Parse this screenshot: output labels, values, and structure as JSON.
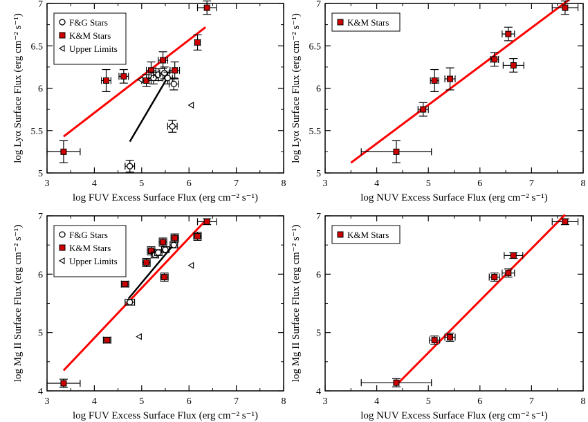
{
  "panels": [
    {
      "id": "tl",
      "xlabel": "log FUV Excess Surface Flux (erg cm⁻² s⁻¹)",
      "ylabel": "log Lyα Surface Flux (erg cm⁻² s⁻¹)",
      "xlim": [
        3,
        8
      ],
      "ylim": [
        5,
        7
      ],
      "xticks": [
        "3",
        "4",
        "5",
        "6",
        "7",
        "8"
      ],
      "yticks": [
        "5",
        "5.5",
        "6",
        "6.5",
        "7"
      ],
      "legend": [
        "F&G Stars",
        "K&M Stars",
        "Upper Limits"
      ]
    },
    {
      "id": "tr",
      "xlabel": "log NUV Excess Surface Flux (erg cm⁻² s⁻¹)",
      "ylabel": "log Lyα Surface Flux (erg cm⁻² s⁻¹)",
      "xlim": [
        3,
        8
      ],
      "ylim": [
        5,
        7
      ],
      "xticks": [
        "3",
        "4",
        "5",
        "6",
        "7",
        "8"
      ],
      "yticks": [
        "5",
        "5.5",
        "6",
        "6.5",
        "7"
      ],
      "legend": [
        "K&M Stars"
      ]
    },
    {
      "id": "bl",
      "xlabel": "log FUV Excess Surface Flux (erg cm⁻² s⁻¹)",
      "ylabel": "log Mg II Surface Flux (erg cm⁻² s⁻¹)",
      "xlim": [
        3,
        8
      ],
      "ylim": [
        4,
        7
      ],
      "xticks": [
        "3",
        "4",
        "5",
        "6",
        "7",
        "8"
      ],
      "yticks": [
        "4",
        "5",
        "6",
        "7"
      ],
      "legend": [
        "F&G Stars",
        "K&M Stars",
        "Upper Limits"
      ]
    },
    {
      "id": "br",
      "xlabel": "log NUV Excess Surface Flux (erg cm⁻² s⁻¹)",
      "ylabel": "log Mg II Surface Flux (erg cm⁻² s⁻¹)",
      "xlim": [
        3,
        8
      ],
      "ylim": [
        4,
        7
      ],
      "xticks": [
        "3",
        "4",
        "5",
        "6",
        "7",
        "8"
      ],
      "yticks": [
        "4",
        "5",
        "6",
        "7"
      ],
      "legend": [
        "K&M Stars"
      ]
    }
  ],
  "chart_data": [
    {
      "type": "scatter",
      "xlabel": "log FUV Excess Surface Flux (erg cm⁻² s⁻¹)",
      "ylabel": "log Lyα Surface Flux (erg cm⁻² s⁻¹)",
      "xlim": [
        3,
        8
      ],
      "ylim": [
        5,
        7
      ],
      "grid": false,
      "legend_position": "top-left",
      "series": [
        {
          "name": "K&M Stars",
          "marker": "red-square",
          "points": [
            {
              "x": 3.35,
              "y": 5.25,
              "xerr": 0.35,
              "yerr": 0.13
            },
            {
              "x": 4.25,
              "y": 6.09,
              "xerr": 0.1,
              "yerr": 0.13
            },
            {
              "x": 4.62,
              "y": 6.14,
              "xerr": 0.1,
              "yerr": 0.08
            },
            {
              "x": 5.1,
              "y": 6.09,
              "xerr": 0.1,
              "yerr": 0.07
            },
            {
              "x": 5.2,
              "y": 6.21,
              "xerr": 0.1,
              "yerr": 0.1
            },
            {
              "x": 5.45,
              "y": 6.33,
              "xerr": 0.1,
              "yerr": 0.1
            },
            {
              "x": 5.7,
              "y": 6.21,
              "xerr": 0.1,
              "yerr": 0.1
            },
            {
              "x": 6.18,
              "y": 6.54,
              "xerr": 0.06,
              "yerr": 0.09
            },
            {
              "x": 6.38,
              "y": 6.95,
              "xerr": 0.2,
              "yerr": 0.08
            }
          ]
        },
        {
          "name": "F&G Stars",
          "marker": "open-circle",
          "points": [
            {
              "x": 4.75,
              "y": 5.08,
              "xerr": 0.1,
              "yerr": 0.07
            },
            {
              "x": 5.25,
              "y": 6.12,
              "xerr": 0.1,
              "yerr": 0.07
            },
            {
              "x": 5.35,
              "y": 6.16,
              "xerr": 0.1,
              "yerr": 0.07
            },
            {
              "x": 5.48,
              "y": 6.18,
              "xerr": 0.1,
              "yerr": 0.07
            },
            {
              "x": 5.55,
              "y": 6.12,
              "xerr": 0.1,
              "yerr": 0.07
            },
            {
              "x": 5.65,
              "y": 5.55,
              "xerr": 0.1,
              "yerr": 0.07
            },
            {
              "x": 5.68,
              "y": 6.05,
              "xerr": 0.1,
              "yerr": 0.07
            }
          ]
        },
        {
          "name": "Upper Limits",
          "marker": "open-triangle-left",
          "points": [
            {
              "x": 4.98,
              "y": 6.1
            },
            {
              "x": 6.05,
              "y": 5.8
            }
          ]
        }
      ],
      "fit_lines": [
        {
          "color": "#ff0000",
          "x": [
            3.35,
            6.35
          ],
          "y": [
            5.43,
            6.72
          ]
        },
        {
          "color": "#000000",
          "x": [
            4.75,
            5.55
          ],
          "y": [
            5.37,
            6.13
          ]
        }
      ]
    },
    {
      "type": "scatter",
      "xlabel": "log NUV Excess Surface Flux (erg cm⁻² s⁻¹)",
      "ylabel": "log Lyα Surface Flux (erg cm⁻² s⁻¹)",
      "xlim": [
        3,
        8
      ],
      "ylim": [
        5,
        7
      ],
      "grid": false,
      "legend_position": "top-left",
      "series": [
        {
          "name": "K&M Stars",
          "marker": "red-square",
          "points": [
            {
              "x": 4.38,
              "y": 5.25,
              "xerr": 0.68,
              "yerr": 0.13
            },
            {
              "x": 4.9,
              "y": 5.75,
              "xerr": 0.1,
              "yerr": 0.08
            },
            {
              "x": 5.12,
              "y": 6.09,
              "xerr": 0.08,
              "yerr": 0.13
            },
            {
              "x": 5.42,
              "y": 6.11,
              "xerr": 0.1,
              "yerr": 0.13
            },
            {
              "x": 6.28,
              "y": 6.34,
              "xerr": 0.08,
              "yerr": 0.08
            },
            {
              "x": 6.55,
              "y": 6.64,
              "xerr": 0.12,
              "yerr": 0.08
            },
            {
              "x": 6.65,
              "y": 6.27,
              "xerr": 0.2,
              "yerr": 0.08
            },
            {
              "x": 7.65,
              "y": 6.95,
              "xerr": 0.25,
              "yerr": 0.08
            }
          ]
        }
      ],
      "fit_lines": [
        {
          "color": "#ff0000",
          "x": [
            3.5,
            7.85
          ],
          "y": [
            5.12,
            7.1
          ]
        }
      ]
    },
    {
      "type": "scatter",
      "xlabel": "log FUV Excess Surface Flux (erg cm⁻² s⁻¹)",
      "ylabel": "log Mg II Surface Flux (erg cm⁻² s⁻¹)",
      "xlim": [
        3,
        8
      ],
      "ylim": [
        4,
        7
      ],
      "grid": false,
      "legend_position": "top-left",
      "series": [
        {
          "name": "K&M Stars",
          "marker": "red-square",
          "points": [
            {
              "x": 3.35,
              "y": 4.13,
              "xerr": 0.35,
              "yerr": 0.07
            },
            {
              "x": 4.27,
              "y": 4.87,
              "xerr": 0.08,
              "yerr": 0.05
            },
            {
              "x": 4.65,
              "y": 5.83,
              "xerr": 0.08,
              "yerr": 0.05
            },
            {
              "x": 5.1,
              "y": 6.2,
              "xerr": 0.08,
              "yerr": 0.07
            },
            {
              "x": 5.2,
              "y": 6.4,
              "xerr": 0.08,
              "yerr": 0.07
            },
            {
              "x": 5.45,
              "y": 6.55,
              "xerr": 0.08,
              "yerr": 0.07
            },
            {
              "x": 5.48,
              "y": 5.95,
              "xerr": 0.08,
              "yerr": 0.07
            },
            {
              "x": 5.7,
              "y": 6.62,
              "xerr": 0.08,
              "yerr": 0.07
            },
            {
              "x": 6.18,
              "y": 6.65,
              "xerr": 0.08,
              "yerr": 0.07
            },
            {
              "x": 6.38,
              "y": 6.9,
              "xerr": 0.2,
              "yerr": 0.05
            }
          ]
        },
        {
          "name": "F&G Stars",
          "marker": "open-circle",
          "points": [
            {
              "x": 4.75,
              "y": 5.52,
              "xerr": 0.1,
              "yerr": 0.05
            },
            {
              "x": 5.28,
              "y": 6.33,
              "xerr": 0.08,
              "yerr": 0.05
            },
            {
              "x": 5.35,
              "y": 6.37,
              "xerr": 0.08,
              "yerr": 0.05
            },
            {
              "x": 5.5,
              "y": 6.42,
              "xerr": 0.08,
              "yerr": 0.05
            },
            {
              "x": 5.68,
              "y": 6.5,
              "xerr": 0.08,
              "yerr": 0.05
            }
          ]
        },
        {
          "name": "Upper Limits",
          "marker": "open-triangle-left",
          "points": [
            {
              "x": 4.95,
              "y": 4.93
            },
            {
              "x": 6.05,
              "y": 6.15
            }
          ]
        }
      ],
      "fit_lines": [
        {
          "color": "#ff0000",
          "x": [
            3.35,
            6.35
          ],
          "y": [
            4.35,
            6.92
          ]
        },
        {
          "color": "#000000",
          "x": [
            4.72,
            5.72
          ],
          "y": [
            5.58,
            6.55
          ]
        }
      ]
    },
    {
      "type": "scatter",
      "xlabel": "log NUV Excess Surface Flux (erg cm⁻² s⁻¹)",
      "ylabel": "log Mg II Surface Flux (erg cm⁻² s⁻¹)",
      "xlim": [
        3,
        8
      ],
      "ylim": [
        4,
        7
      ],
      "grid": false,
      "legend_position": "top-left",
      "series": [
        {
          "name": "K&M Stars",
          "marker": "red-square",
          "points": [
            {
              "x": 4.38,
              "y": 4.14,
              "xerr": 0.68,
              "yerr": 0.07
            },
            {
              "x": 5.12,
              "y": 4.87,
              "xerr": 0.1,
              "yerr": 0.07
            },
            {
              "x": 5.42,
              "y": 4.92,
              "xerr": 0.1,
              "yerr": 0.07
            },
            {
              "x": 6.28,
              "y": 5.95,
              "xerr": 0.1,
              "yerr": 0.07
            },
            {
              "x": 6.55,
              "y": 6.02,
              "xerr": 0.12,
              "yerr": 0.07
            },
            {
              "x": 6.65,
              "y": 6.32,
              "xerr": 0.18,
              "yerr": 0.05
            },
            {
              "x": 7.65,
              "y": 6.9,
              "xerr": 0.25,
              "yerr": 0.05
            }
          ]
        }
      ],
      "fit_lines": [
        {
          "color": "#ff0000",
          "x": [
            4.38,
            7.65
          ],
          "y": [
            4.1,
            7.02
          ]
        }
      ]
    }
  ]
}
